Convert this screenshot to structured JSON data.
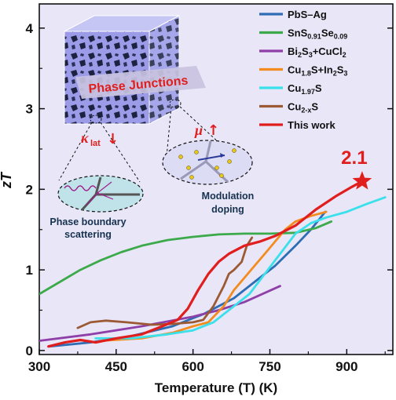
{
  "chart_data": {
    "type": "line",
    "xlabel": "Temperature (T) (K)",
    "ylabel": "zT",
    "xlim": [
      300,
      990
    ],
    "ylim": [
      -0.05,
      4.3
    ],
    "x_ticks": [
      "300",
      "450",
      "600",
      "750",
      "900"
    ],
    "y_ticks": [
      "0",
      "1",
      "2",
      "3",
      "4"
    ],
    "grid": false,
    "legend_position": "top-right",
    "peak_label": "2.1",
    "peak_point": {
      "x": 930,
      "y": 2.1
    },
    "series": [
      {
        "name": "PbS–Ag",
        "color": "#2e6db4",
        "points": [
          [
            320,
            0.05
          ],
          [
            400,
            0.1
          ],
          [
            480,
            0.18
          ],
          [
            560,
            0.3
          ],
          [
            620,
            0.45
          ],
          [
            680,
            0.65
          ],
          [
            720,
            0.85
          ],
          [
            760,
            1.05
          ],
          [
            800,
            1.3
          ],
          [
            830,
            1.5
          ],
          [
            858,
            1.72
          ]
        ]
      },
      {
        "name": "SnS0.91Se0.09",
        "color": "#3caa4a",
        "points": [
          [
            300,
            0.7
          ],
          [
            340,
            0.85
          ],
          [
            380,
            1.0
          ],
          [
            420,
            1.12
          ],
          [
            460,
            1.22
          ],
          [
            500,
            1.3
          ],
          [
            550,
            1.37
          ],
          [
            600,
            1.41
          ],
          [
            650,
            1.44
          ],
          [
            700,
            1.45
          ],
          [
            750,
            1.45
          ],
          [
            800,
            1.46
          ],
          [
            840,
            1.52
          ],
          [
            870,
            1.6
          ]
        ]
      },
      {
        "name": "Bi2S3+CuCl2",
        "color": "#8e3fa8",
        "points": [
          [
            300,
            0.12
          ],
          [
            400,
            0.2
          ],
          [
            500,
            0.3
          ],
          [
            600,
            0.42
          ],
          [
            650,
            0.5
          ],
          [
            700,
            0.6
          ],
          [
            770,
            0.8
          ]
        ]
      },
      {
        "name": "Cu1.8S+In2S3",
        "color": "#f28c1e",
        "points": [
          [
            420,
            0.12
          ],
          [
            500,
            0.15
          ],
          [
            560,
            0.22
          ],
          [
            600,
            0.3
          ],
          [
            630,
            0.35
          ],
          [
            660,
            0.55
          ],
          [
            680,
            0.75
          ],
          [
            700,
            0.9
          ],
          [
            720,
            1.05
          ],
          [
            740,
            1.2
          ],
          [
            760,
            1.35
          ],
          [
            780,
            1.5
          ],
          [
            800,
            1.6
          ],
          [
            830,
            1.67
          ],
          [
            860,
            1.72
          ]
        ]
      },
      {
        "name": "Cu1.97S",
        "color": "#3ae0ea",
        "points": [
          [
            410,
            0.15
          ],
          [
            480,
            0.15
          ],
          [
            550,
            0.2
          ],
          [
            600,
            0.25
          ],
          [
            640,
            0.35
          ],
          [
            680,
            0.55
          ],
          [
            710,
            0.7
          ],
          [
            740,
            0.95
          ],
          [
            770,
            1.2
          ],
          [
            800,
            1.45
          ],
          [
            830,
            1.58
          ],
          [
            860,
            1.65
          ],
          [
            900,
            1.72
          ],
          [
            940,
            1.82
          ],
          [
            975,
            1.9
          ]
        ]
      },
      {
        "name": "Cu2-xS",
        "color": "#9b5a34",
        "points": [
          [
            375,
            0.28
          ],
          [
            400,
            0.35
          ],
          [
            430,
            0.37
          ],
          [
            470,
            0.35
          ],
          [
            520,
            0.32
          ],
          [
            560,
            0.33
          ],
          [
            600,
            0.35
          ],
          [
            620,
            0.38
          ],
          [
            640,
            0.55
          ],
          [
            660,
            0.8
          ],
          [
            670,
            0.95
          ],
          [
            680,
            1.0
          ],
          [
            695,
            1.1
          ],
          [
            705,
            1.3
          ],
          [
            715,
            1.4
          ]
        ]
      },
      {
        "name": "This work",
        "color": "#e01e1e",
        "points": [
          [
            318,
            0.05
          ],
          [
            350,
            0.1
          ],
          [
            380,
            0.13
          ],
          [
            410,
            0.1
          ],
          [
            450,
            0.15
          ],
          [
            500,
            0.2
          ],
          [
            540,
            0.3
          ],
          [
            570,
            0.38
          ],
          [
            590,
            0.52
          ],
          [
            610,
            0.75
          ],
          [
            630,
            0.95
          ],
          [
            650,
            1.1
          ],
          [
            670,
            1.2
          ],
          [
            700,
            1.3
          ],
          [
            730,
            1.35
          ],
          [
            760,
            1.42
          ],
          [
            800,
            1.55
          ],
          [
            840,
            1.75
          ],
          [
            880,
            1.92
          ],
          [
            910,
            2.03
          ],
          [
            930,
            2.1
          ]
        ]
      }
    ]
  },
  "legend": [
    {
      "base": "PbS–Ag"
    },
    {
      "base": "SnS",
      "sub1": "0.91",
      "mid": "Se",
      "sub2": "0.09"
    },
    {
      "base": "Bi",
      "sub1": "2",
      "mid": "S",
      "sub2": "3",
      "tail": "+CuCl",
      "sub3": "2"
    },
    {
      "base": "Cu",
      "sub1": "1.8",
      "mid": "S+In",
      "sub2": "2",
      "tail": "S",
      "sub3": "3"
    },
    {
      "base": "Cu",
      "sub1": "1.97",
      "mid": "S"
    },
    {
      "base": "Cu",
      "sub1": "2-x",
      "mid": "S"
    },
    {
      "base": "This work"
    }
  ],
  "inset": {
    "banner": "Phase Junctions",
    "kappa_symbol": "κ",
    "kappa_sub": "lat",
    "kappa_arrow": "↓",
    "mu_symbol": "μ",
    "mu_arrow": "↑",
    "scattering_label_1": "Phase boundary",
    "scattering_label_2": "scattering",
    "doping_label_1": "Modulation",
    "doping_label_2": "doping"
  },
  "colors": {
    "background": "#e9e6f8",
    "accent": "#e01e1e",
    "cube_light": "#b8b8f0",
    "cube_dark": "#1c2240"
  }
}
